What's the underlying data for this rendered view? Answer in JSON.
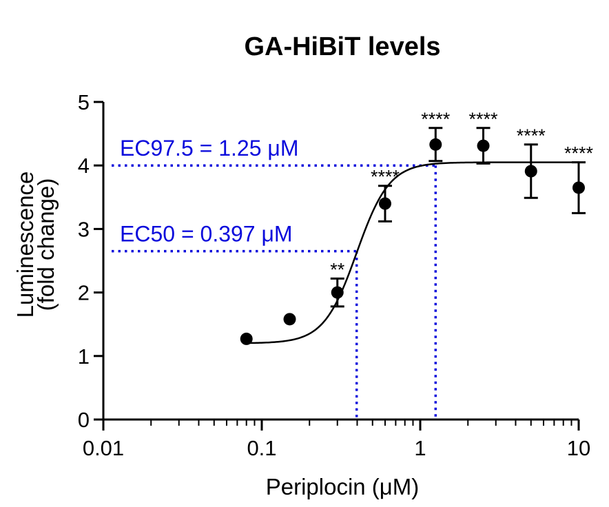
{
  "chart_data": {
    "type": "scatter",
    "title": "GA-HiBiT levels",
    "xlabel": "Periplocin (μM)",
    "ylabel_line1": "Luminescence",
    "ylabel_line2": "(fold change)",
    "xscale": "log",
    "xlim": [
      0.01,
      10
    ],
    "ylim": [
      0,
      5
    ],
    "x_ticks": [
      0.01,
      0.1,
      1,
      10
    ],
    "x_tick_labels": [
      "0.01",
      "0.1",
      "1",
      "10"
    ],
    "y_ticks": [
      0,
      1,
      2,
      3,
      4,
      5
    ],
    "y_tick_labels": [
      "0",
      "1",
      "2",
      "3",
      "4",
      "5"
    ],
    "grid": false,
    "points": [
      {
        "x": 0.08,
        "y": 1.27,
        "err": 0.0,
        "sig": ""
      },
      {
        "x": 0.15,
        "y": 1.58,
        "err": 0.0,
        "sig": ""
      },
      {
        "x": 0.3,
        "y": 2.0,
        "err": 0.22,
        "sig": "**"
      },
      {
        "x": 0.6,
        "y": 3.4,
        "err": 0.28,
        "sig": "****"
      },
      {
        "x": 1.25,
        "y": 4.33,
        "err": 0.26,
        "sig": "****"
      },
      {
        "x": 2.5,
        "y": 4.31,
        "err": 0.28,
        "sig": "****"
      },
      {
        "x": 5,
        "y": 3.91,
        "err": 0.42,
        "sig": "****"
      },
      {
        "x": 10,
        "y": 3.65,
        "err": 0.4,
        "sig": "****"
      }
    ],
    "fit_curve": {
      "bottom": 1.2,
      "top": 4.05,
      "ec50": 0.397,
      "hill": 4.2
    },
    "reference_lines": [
      {
        "label": "EC97.5 = 1.25 μM",
        "x": 1.25,
        "y": 4.0
      },
      {
        "label": "EC50 = 0.397 μM",
        "x": 0.397,
        "y": 2.65
      }
    ],
    "colors": {
      "data": "#000000",
      "reference": "#0b0bdc"
    }
  }
}
